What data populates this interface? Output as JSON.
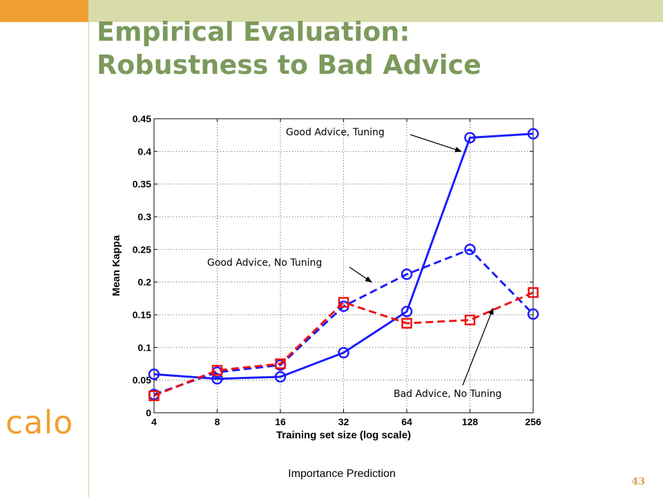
{
  "slide": {
    "title_line1": "Empirical Evaluation:",
    "title_line2": "Robustness to Bad Advice",
    "logo_text": "calo",
    "caption": "Importance Prediction",
    "page_number": "43",
    "colors": {
      "accent_orange": "#f0a030",
      "band": "#d8dcaa",
      "title_green": "#7c9a5c"
    }
  },
  "chart_data": {
    "type": "line",
    "xlabel": "Training set size (log scale)",
    "ylabel": "Mean Kappa",
    "x_scale": "log2",
    "x": [
      4,
      8,
      16,
      32,
      64,
      128,
      256
    ],
    "x_ticks": [
      "4",
      "8",
      "16",
      "32",
      "64",
      "128",
      "256"
    ],
    "ylim": [
      0,
      0.45
    ],
    "y_ticks": [
      "0",
      "0.05",
      "0.1",
      "0.15",
      "0.2",
      "0.25",
      "0.3",
      "0.35",
      "0.4",
      "0.45"
    ],
    "grid": true,
    "series": [
      {
        "name": "Good Advice, Tuning",
        "color": "#1a1aff",
        "style": "solid",
        "marker": "circle",
        "values": [
          0.059,
          0.052,
          0.055,
          0.092,
          0.155,
          0.421,
          0.427
        ]
      },
      {
        "name": "Good Advice, No Tuning",
        "color": "#1a1aff",
        "style": "dashed",
        "marker": "circle",
        "values": [
          0.028,
          0.062,
          0.073,
          0.163,
          0.212,
          0.25,
          0.151
        ]
      },
      {
        "name": "Bad Advice, No Tuning",
        "color": "#ee1111",
        "style": "dashed",
        "marker": "square",
        "values": [
          0.026,
          0.065,
          0.075,
          0.169,
          0.137,
          0.142,
          0.184
        ]
      }
    ],
    "annotations": [
      {
        "text": "Good Advice, Tuning"
      },
      {
        "text": "Good Advice, No Tuning"
      },
      {
        "text": "Bad Advice, No Tuning"
      }
    ]
  }
}
